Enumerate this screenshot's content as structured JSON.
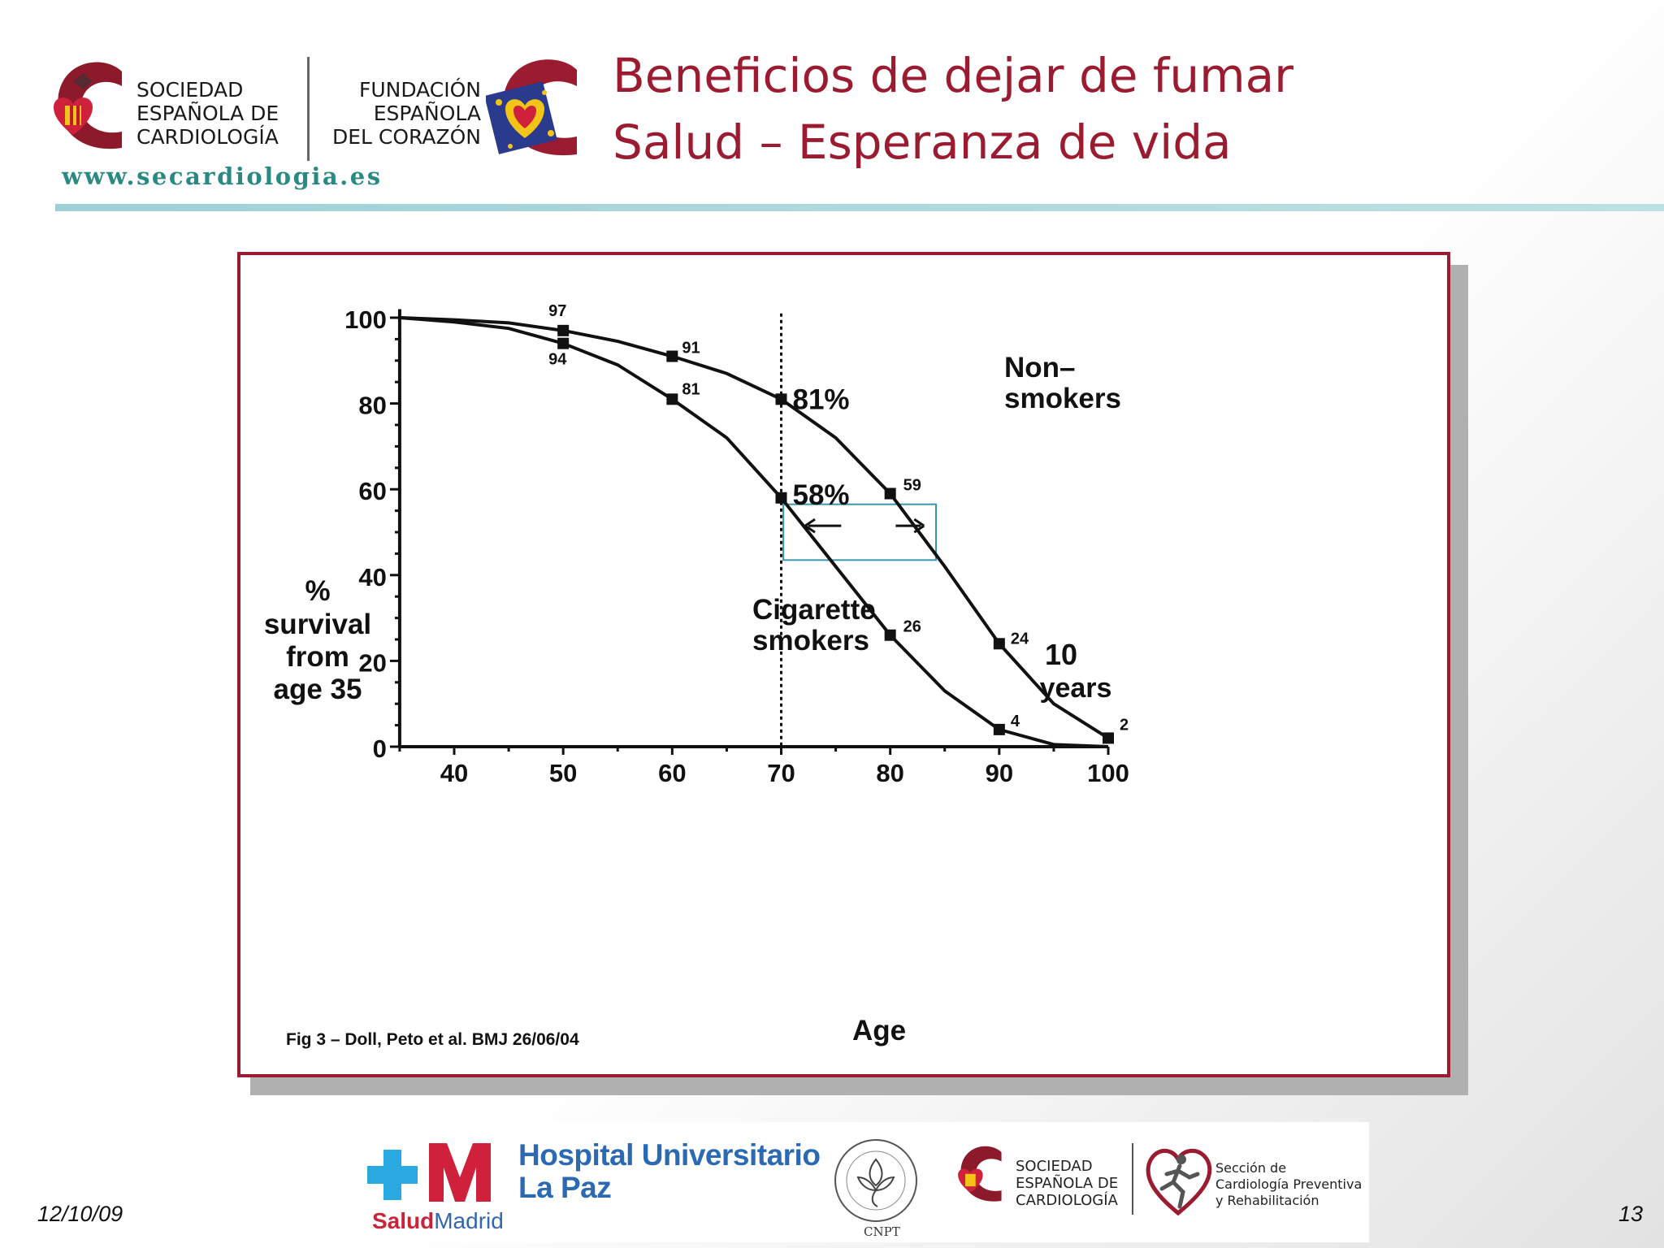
{
  "header": {
    "sec_logo_lines": [
      "SOCIEDAD",
      "ESPAÑOLA DE",
      "CARDIOLOGÍA"
    ],
    "fec_logo_lines": [
      "FUNDACIÓN",
      "ESPAÑOLA",
      "DEL CORAZÓN"
    ],
    "website": "www.secardiologia.es",
    "title_lines": [
      "Beneficios de dejar de fumar",
      "Salud – Esperanza de vida"
    ]
  },
  "colors": {
    "title": "#9b1b30",
    "frame": "#9b1b30",
    "rule": "#a8d5da",
    "website": "#2a8a83",
    "box": "#3b95ad"
  },
  "chart_data": {
    "type": "line",
    "xlabel": "Age",
    "ylabel_lines": [
      "%",
      "survival",
      "from",
      "age 35"
    ],
    "xlim": [
      35,
      100
    ],
    "ylim": [
      0,
      100
    ],
    "x_ticks": [
      40,
      50,
      60,
      70,
      80,
      90,
      100
    ],
    "y_ticks": [
      0,
      20,
      40,
      60,
      80,
      100
    ],
    "grid": false,
    "series": [
      {
        "name": "Non-smokers",
        "label_lines": [
          "Non–",
          "smokers"
        ],
        "x": [
          35,
          40,
          45,
          50,
          55,
          60,
          65,
          70,
          75,
          80,
          85,
          90,
          95,
          100
        ],
        "y": [
          100,
          99.5,
          98.8,
          97,
          94.5,
          91,
          87,
          81,
          72,
          59,
          42,
          24,
          10,
          2
        ],
        "markers": [
          {
            "x": 50,
            "y": 97,
            "label": "97"
          },
          {
            "x": 60,
            "y": 91,
            "label": "91"
          },
          {
            "x": 70,
            "y": 81,
            "label": "81%"
          },
          {
            "x": 80,
            "y": 59,
            "label": "59"
          },
          {
            "x": 90,
            "y": 24,
            "label": "24"
          },
          {
            "x": 100,
            "y": 2,
            "label": "2"
          }
        ]
      },
      {
        "name": "Cigarette smokers",
        "label_lines": [
          "Cigarette",
          "smokers"
        ],
        "x": [
          35,
          40,
          45,
          50,
          55,
          60,
          65,
          70,
          75,
          80,
          85,
          90,
          95,
          100
        ],
        "y": [
          100,
          99,
          97.5,
          94,
          89,
          81,
          72,
          58,
          42,
          26,
          13,
          4,
          0.5,
          0
        ],
        "markers": [
          {
            "x": 50,
            "y": 94,
            "label": "94"
          },
          {
            "x": 60,
            "y": 81,
            "label": "81"
          },
          {
            "x": 70,
            "y": 58,
            "label": "58%"
          },
          {
            "x": 80,
            "y": 26,
            "label": "26"
          },
          {
            "x": 90,
            "y": 4,
            "label": "4"
          }
        ]
      }
    ],
    "annotations": {
      "reference_line_x": 70,
      "gap_box_lines": [
        "10",
        "years"
      ],
      "source": "Fig 3 – Doll, Peto et al.   BMJ 26/06/04"
    }
  },
  "footer": {
    "hospital_lines": [
      "Hospital Universitario",
      "La Paz"
    ],
    "salud_a": "Salud",
    "salud_b": "Madrid",
    "cnpt_label": "CNPT",
    "sec_lines": [
      "SOCIEDAD",
      "ESPAÑOLA DE",
      "CARDIOLOGÍA"
    ],
    "seccion_lines": [
      "Sección de",
      "Cardiología Preventiva",
      "y Rehabilitación"
    ],
    "date": "12/10/09",
    "page_number": "13"
  }
}
